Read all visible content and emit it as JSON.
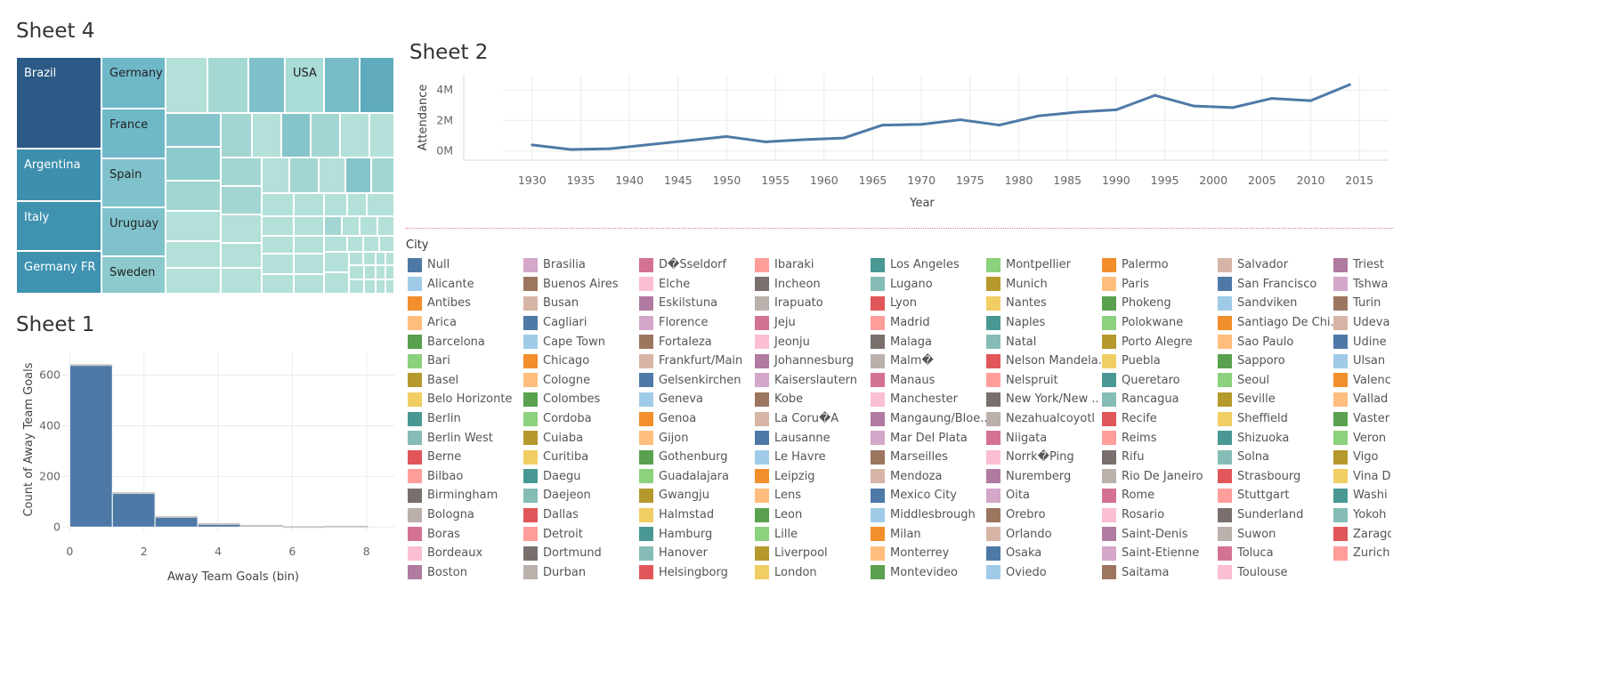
{
  "sheet4": {
    "title": "Sheet 4",
    "labels": [
      "Brazil",
      "Germany",
      "USA",
      "Argentina",
      "France",
      "Spain",
      "Italy",
      "Uruguay",
      "Germany FR",
      "Sweden"
    ]
  },
  "sheet2": {
    "title": "Sheet 2"
  },
  "sheet1": {
    "title": "Sheet 1"
  },
  "legend": {
    "title": "City",
    "columns": [
      [
        "Null",
        "Alicante",
        "Antibes",
        "Arica",
        "Barcelona",
        "Bari",
        "Basel",
        "Belo Horizonte",
        "Berlin",
        "Berlin West",
        "Berne",
        "Bilbao",
        "Birmingham",
        "Bologna",
        "Boras",
        "Bordeaux",
        "Boston"
      ],
      [
        "Brasilia",
        "Buenos Aires",
        "Busan",
        "Cagliari",
        "Cape Town",
        "Chicago",
        "Cologne",
        "Colombes",
        "Cordoba",
        "Cuiaba",
        "Curitiba",
        "Daegu",
        "Daejeon",
        "Dallas",
        "Detroit",
        "Dortmund",
        "Durban"
      ],
      [
        "D�Sseldorf",
        "Elche",
        "Eskilstuna",
        "Florence",
        "Fortaleza",
        "Frankfurt/Main",
        "Gelsenkirchen",
        "Geneva",
        "Genoa",
        "Gijon",
        "Gothenburg",
        "Guadalajara",
        "Gwangju",
        "Halmstad",
        "Hamburg",
        "Hanover",
        "Helsingborg"
      ],
      [
        "Ibaraki",
        "Incheon",
        "Irapuato",
        "Jeju",
        "Jeonju",
        "Johannesburg",
        "Kaiserslautern",
        "Kobe",
        "La Coru�A",
        "Lausanne",
        "Le Havre",
        "Leipzig",
        "Lens",
        "Leon",
        "Lille",
        "Liverpool",
        "London"
      ],
      [
        "Los Angeles",
        "Lugano",
        "Lyon",
        "Madrid",
        "Malaga",
        "Malm�",
        "Manaus",
        "Manchester",
        "Mangaung/Bloe..",
        "Mar Del Plata",
        "Marseilles",
        "Mendoza",
        "Mexico City",
        "Middlesbrough",
        "Milan",
        "Monterrey",
        "Montevideo"
      ],
      [
        "Montpellier",
        "Munich",
        "Nantes",
        "Naples",
        "Natal",
        "Nelson Mandela..",
        "Nelspruit",
        "New York/New ..",
        "Nezahualcoyotl",
        "Niigata",
        "Norrk�Ping",
        "Nuremberg",
        "Oita",
        "Orebro",
        "Orlando",
        "Osaka",
        "Oviedo"
      ],
      [
        "Palermo",
        "Paris",
        "Phokeng",
        "Polokwane",
        "Porto Alegre",
        "Puebla",
        "Queretaro",
        "Rancagua",
        "Recife",
        "Reims",
        "Rifu",
        "Rio De Janeiro",
        "Rome",
        "Rosario",
        "Saint-Denis",
        "Saint-Etienne",
        "Saitama"
      ],
      [
        "Salvador",
        "San Francisco",
        "Sandviken",
        "Santiago De Chi..",
        "Sao Paulo",
        "Sapporo",
        "Seoul",
        "Seville",
        "Sheffield",
        "Shizuoka",
        "Solna",
        "Strasbourg",
        "Stuttgart",
        "Sunderland",
        "Suwon",
        "Toluca",
        "Toulouse"
      ],
      [
        "Triest",
        "Tshwa",
        "Turin",
        "Udeva",
        "Udine",
        "Ulsan",
        "Valenc",
        "Vallad",
        "Vaster",
        "Veron",
        "Vigo",
        "Vina D",
        "Washi",
        "Yokoh",
        "Zarago",
        "Zurich"
      ]
    ],
    "palette": [
      "#4e79a7",
      "#a0cbe8",
      "#f28e2b",
      "#ffbe7d",
      "#59a14f",
      "#8cd17d",
      "#b6992d",
      "#f1ce63",
      "#499894",
      "#86bcb6",
      "#e15759",
      "#ff9d9a",
      "#79706e",
      "#bab0ac",
      "#d37295",
      "#fabfd2",
      "#b07aa1",
      "#d4a6c8",
      "#9d7660",
      "#d7b5a6"
    ]
  },
  "chart_data": [
    {
      "type": "line",
      "title": "Sheet 2",
      "xlabel": "Year",
      "ylabel": "Attendance",
      "x": [
        1930,
        1934,
        1938,
        1950,
        1954,
        1958,
        1962,
        1966,
        1970,
        1974,
        1978,
        1982,
        1986,
        1990,
        1994,
        1998,
        2002,
        2006,
        2010,
        2014
      ],
      "y": [
        0.4,
        0.1,
        0.15,
        0.95,
        0.6,
        0.75,
        0.85,
        1.7,
        1.75,
        2.05,
        1.7,
        2.3,
        2.55,
        2.7,
        3.65,
        2.95,
        2.85,
        3.45,
        3.3,
        4.35
      ],
      "y_unit": "M",
      "x_ticks": [
        "1930",
        "1935",
        "1940",
        "1945",
        "1950",
        "1955",
        "1960",
        "1965",
        "1970",
        "1975",
        "1980",
        "1985",
        "1990",
        "1995",
        "2000",
        "2005",
        "2010",
        "2015"
      ],
      "y_ticks": [
        "0M",
        "2M",
        "4M"
      ],
      "ylim": [
        -0.6,
        5
      ],
      "xlim": [
        1927,
        2018
      ],
      "grid": true,
      "color": "#4e79a7"
    },
    {
      "type": "bar",
      "title": "Sheet 1",
      "xlabel": "Away Team Goals (bin)",
      "ylabel": "Count of Away Team Goals",
      "bins": [
        0,
        1.15,
        2.3,
        3.45,
        4.6,
        5.75,
        6.9
      ],
      "bin_width": 1.15,
      "values": [
        640,
        134,
        40,
        12,
        5,
        0,
        2
      ],
      "x_ticks": [
        "0",
        "2",
        "4",
        "6",
        "8"
      ],
      "y_ticks": [
        "0",
        "200",
        "400",
        "600"
      ],
      "ylim": [
        -20,
        690
      ],
      "xlim": [
        -0.2,
        8.75
      ],
      "grid": true,
      "color": "#4e79a7"
    },
    {
      "type": "treemap",
      "title": "Sheet 4",
      "items": [
        {
          "label": "Brazil",
          "value": 220,
          "color": "#2b5a86"
        },
        {
          "label": "Germany",
          "value": 160,
          "color": "#6fb8c8"
        },
        {
          "label": "France",
          "value": 140,
          "color": "#6fb8c8"
        },
        {
          "label": "Spain",
          "value": 140,
          "color": "#80c2cc"
        },
        {
          "label": "Uruguay",
          "value": 140,
          "color": "#80c2cc"
        },
        {
          "label": "Sweden",
          "value": 140,
          "color": "#8ccacd"
        },
        {
          "label": "Argentina",
          "value": 140,
          "color": "#3d8fad"
        },
        {
          "label": "Italy",
          "value": 140,
          "color": "#3f93b0"
        },
        {
          "label": "Germany FR",
          "value": 140,
          "color": "#3f93b0"
        },
        {
          "label": "USA",
          "value": 90,
          "color": "#a9dcd6"
        }
      ]
    }
  ]
}
